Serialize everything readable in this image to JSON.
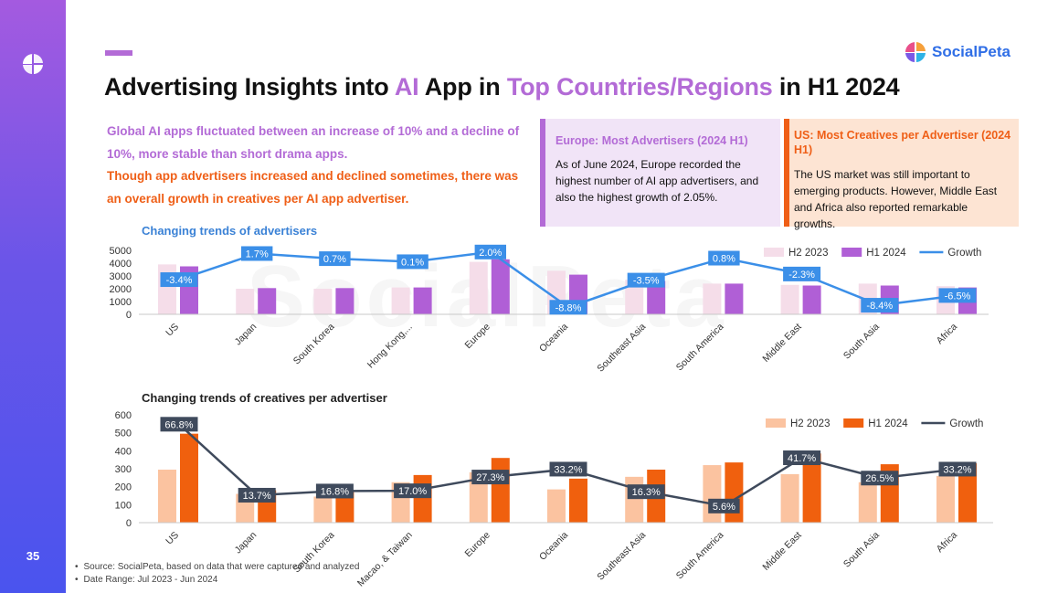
{
  "page_number": "35",
  "brand": "SocialPeta",
  "title": {
    "part1": "Advertising Insights into ",
    "hl1": "AI",
    "part2": " App in ",
    "hl2": "Top Countries/Regions",
    "part3": " in H1 2024"
  },
  "summary": {
    "line1": "Global AI apps fluctuated between an increase of 10% and a decline of 10%, more stable than short drama apps.",
    "line2": "Though app advertisers increased and declined sometimes, there was an overall growth in creatives per AI app advertiser."
  },
  "europe_box": {
    "title": "Europe: Most Advertisers (2024 H1)",
    "text": "As of June 2024, Europe recorded the highest number of AI app advertisers, and also the highest growth of 2.05%."
  },
  "us_box": {
    "title": "US: Most Creatives per Advertiser (2024 H1)",
    "text": "The US market was still important to emerging products. However, Middle East and Africa also reported remarkable growths."
  },
  "watermark": "SocialPeta",
  "notes": {
    "source": "Source: SocialPeta, based on data that were captured and analyzed",
    "range": "Date Range: Jul 2023 - Jun 2024"
  },
  "colors": {
    "purple": "#b36bd6",
    "orange": "#ef5f17",
    "blue_line": "#3b8fe8",
    "dark_line": "#3f4a5c"
  },
  "chart_data": [
    {
      "type": "bar",
      "title": "Changing trends of advertisers",
      "categories": [
        "US",
        "Japan",
        "South Korea",
        "Hong Kong,...",
        "Europe",
        "Oceania",
        "Southeast Asia",
        "South America",
        "Middle East",
        "South Asia",
        "Africa"
      ],
      "series": [
        {
          "name": "H2 2023",
          "values": [
            3900,
            2000,
            2000,
            2100,
            4100,
            3400,
            2700,
            2400,
            2300,
            2400,
            2200
          ],
          "color": "#f5dde9"
        },
        {
          "name": "H1 2024",
          "values": [
            3750,
            2050,
            2050,
            2100,
            4300,
            3100,
            2600,
            2400,
            2250,
            2250,
            2100
          ],
          "color": "#b05fd6"
        }
      ],
      "line": {
        "name": "Growth",
        "labels": [
          "-3.4%",
          "1.7%",
          "0.7%",
          "0.1%",
          "2.0%",
          "-8.8%",
          "-3.5%",
          "0.8%",
          "-2.3%",
          "-8.4%",
          "-6.5%"
        ],
        "values": [
          -3.4,
          1.7,
          0.7,
          0.1,
          2.0,
          -8.8,
          -3.5,
          0.8,
          -2.3,
          -8.4,
          -6.5
        ]
      },
      "yticks": [
        "0",
        "1000",
        "2000",
        "3000",
        "4000",
        "5000"
      ],
      "ylim": [
        0,
        5000
      ],
      "legend": "top-right"
    },
    {
      "type": "bar",
      "title": "Changing trends of creatives per advertiser",
      "categories": [
        "US",
        "Japan",
        "South Korea",
        "Macao, & Taiwan",
        "Europe",
        "Oceania",
        "Southeast Asia",
        "South America",
        "Middle East",
        "South Asia",
        "Africa"
      ],
      "series": [
        {
          "name": "H2 2023",
          "values": [
            295,
            160,
            145,
            225,
            280,
            185,
            255,
            320,
            270,
            225,
            260
          ],
          "color": "#fbc3a0"
        },
        {
          "name": "H1 2024",
          "values": [
            495,
            180,
            170,
            265,
            360,
            245,
            295,
            335,
            385,
            325,
            330
          ],
          "color": "#f0600e"
        }
      ],
      "line": {
        "name": "Growth",
        "labels": [
          "66.8%",
          "13.7%",
          "16.8%",
          "17.0%",
          "27.3%",
          "33.2%",
          "16.3%",
          "5.6%",
          "41.7%",
          "26.5%",
          "33.2%"
        ],
        "values": [
          66.8,
          13.7,
          16.8,
          17.0,
          27.3,
          33.2,
          16.3,
          5.6,
          41.7,
          26.5,
          33.2
        ]
      },
      "yticks": [
        "0",
        "100",
        "200",
        "300",
        "400",
        "500",
        "600"
      ],
      "ylim": [
        0,
        600
      ],
      "legend": "top-right"
    }
  ]
}
